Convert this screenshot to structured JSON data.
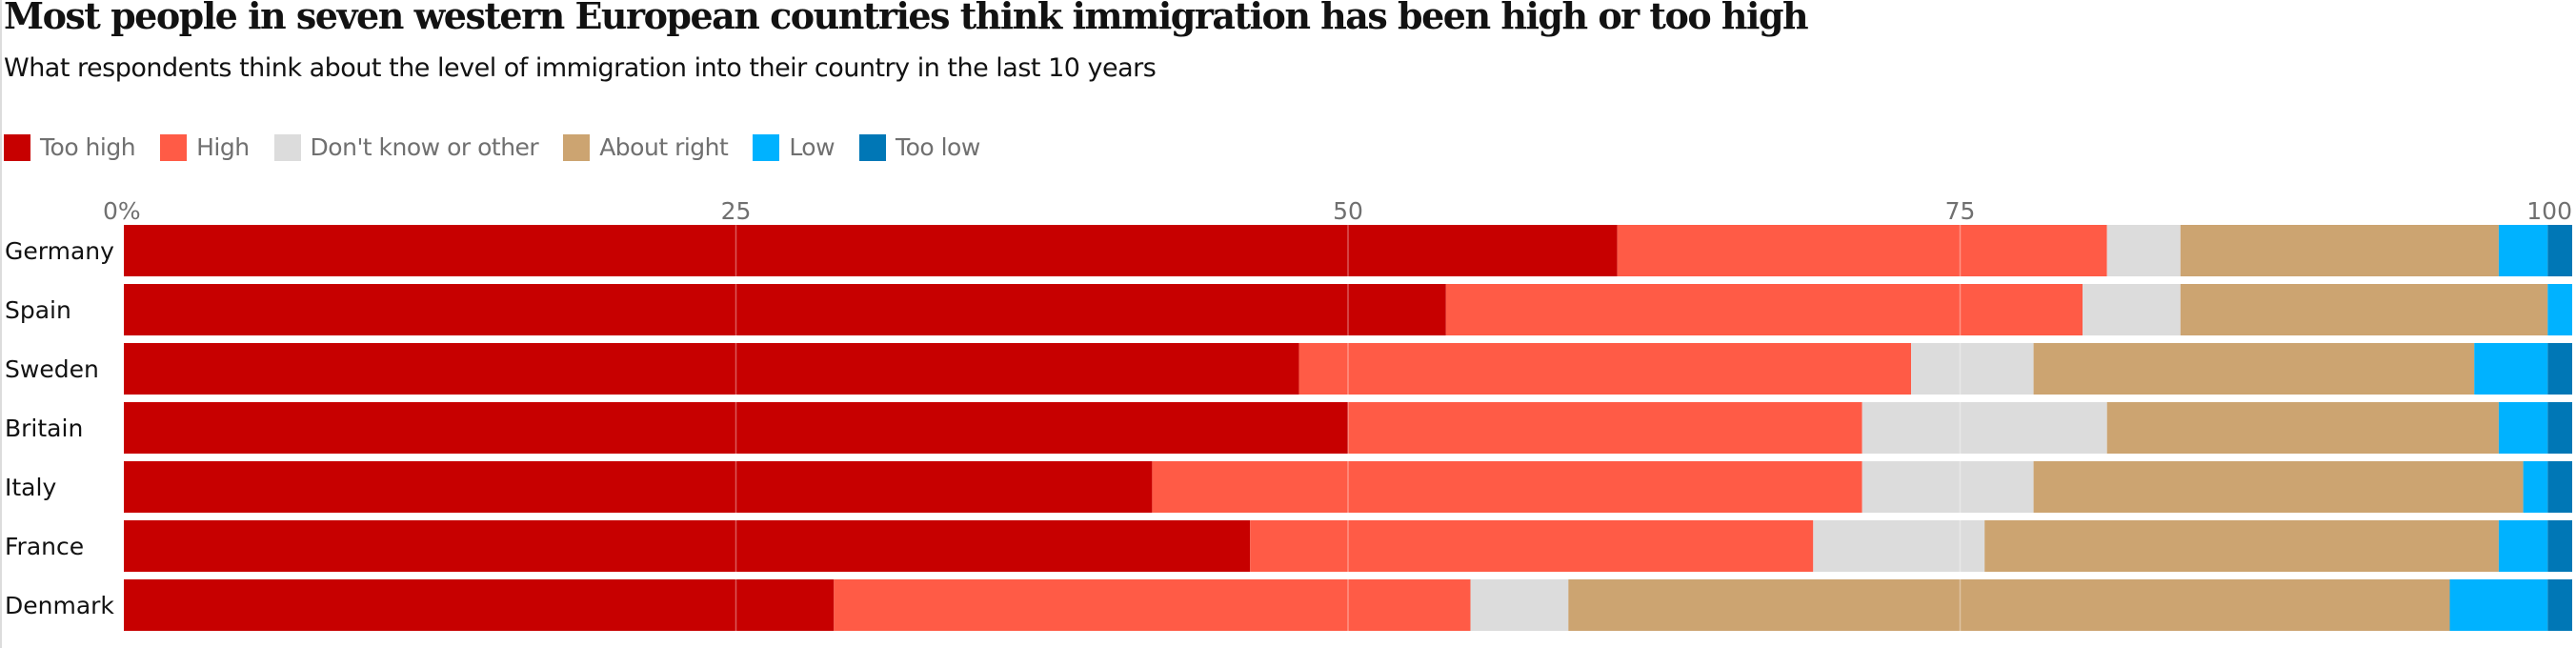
{
  "chart_data": {
    "type": "bar",
    "orientation": "horizontal",
    "stacked": true,
    "title": "Most people in seven western European countries think immigration has been high or too high",
    "subtitle": "What respondents think about the level of immigration into their country in the last 10 years",
    "categories": [
      "Germany",
      "Spain",
      "Sweden",
      "Britain",
      "Italy",
      "France",
      "Denmark"
    ],
    "series": [
      {
        "name": "Too high",
        "color": "#c70000",
        "values": [
          61,
          54,
          48,
          50,
          42,
          46,
          29
        ]
      },
      {
        "name": "High",
        "color": "#ff5b46",
        "values": [
          20,
          26,
          25,
          21,
          29,
          23,
          26
        ]
      },
      {
        "name": "Don't know or other",
        "color": "#dcdcdc",
        "values": [
          3,
          4,
          5,
          10,
          7,
          7,
          4
        ]
      },
      {
        "name": "About right",
        "color": "#cca471",
        "values": [
          13,
          15,
          18,
          16,
          20,
          21,
          36
        ]
      },
      {
        "name": "Low",
        "color": "#00b2ff",
        "values": [
          2,
          1,
          3,
          2,
          1,
          2,
          4
        ]
      },
      {
        "name": "Too low",
        "color": "#0077b6",
        "values": [
          1,
          0,
          1,
          1,
          1,
          1,
          1
        ]
      }
    ],
    "xlim": [
      0,
      100
    ],
    "xticks": [
      0,
      25,
      50,
      75,
      100
    ],
    "xtick_labels": [
      "0%",
      "25",
      "50",
      "75",
      "100"
    ],
    "xlabel": "",
    "ylabel": "",
    "grid": true,
    "legend_position": "top-left"
  }
}
